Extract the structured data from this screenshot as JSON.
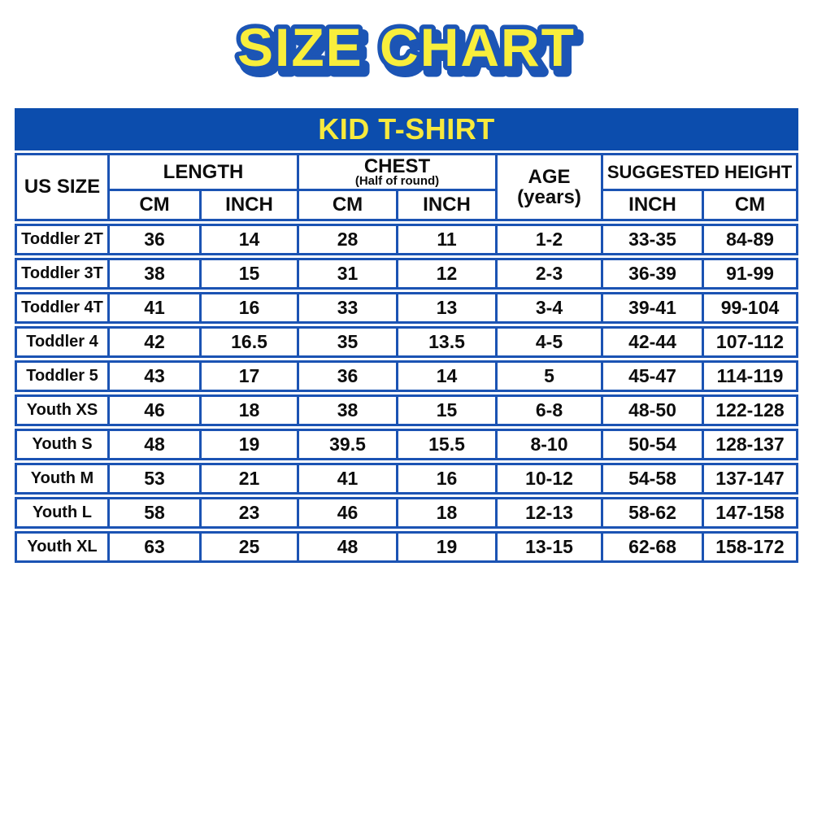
{
  "page": {
    "title": "SIZE CHART"
  },
  "colors": {
    "band_blue": "#0c4dad",
    "border_blue": "#1b53b3",
    "title_yellow": "#f8ee3c",
    "banner_yellow": "#f7e93d",
    "text_black": "#0d0d0d",
    "background": "#ffffff"
  },
  "table": {
    "banner": "KID T-SHIRT",
    "headers": {
      "us_size": "US SIZE",
      "length": "LENGTH",
      "chest": "CHEST",
      "chest_sub": "(Half of round)",
      "age": "AGE",
      "age_sub": "(years)",
      "suggested_height": "SUGGESTED HEIGHT",
      "length_cm": "CM",
      "length_inch": "INCH",
      "chest_cm": "CM",
      "chest_inch": "INCH",
      "height_inch": "INCH",
      "height_cm": "CM"
    }
  },
  "chart_data": {
    "type": "table",
    "title": "SIZE CHART",
    "subtitle": "KID T-SHIRT",
    "columns": [
      "US SIZE",
      "LENGTH CM",
      "LENGTH INCH",
      "CHEST (Half of round) CM",
      "CHEST (Half of round) INCH",
      "AGE (years)",
      "SUGGESTED HEIGHT INCH",
      "SUGGESTED HEIGHT CM"
    ],
    "rows": [
      [
        "Toddler 2T",
        "36",
        "14",
        "28",
        "11",
        "1-2",
        "33-35",
        "84-89"
      ],
      [
        "Toddler 3T",
        "38",
        "15",
        "31",
        "12",
        "2-3",
        "36-39",
        "91-99"
      ],
      [
        "Toddler 4T",
        "41",
        "16",
        "33",
        "13",
        "3-4",
        "39-41",
        "99-104"
      ],
      [
        "Toddler 4",
        "42",
        "16.5",
        "35",
        "13.5",
        "4-5",
        "42-44",
        "107-112"
      ],
      [
        "Toddler 5",
        "43",
        "17",
        "36",
        "14",
        "5",
        "45-47",
        "114-119"
      ],
      [
        "Youth XS",
        "46",
        "18",
        "38",
        "15",
        "6-8",
        "48-50",
        "122-128"
      ],
      [
        "Youth S",
        "48",
        "19",
        "39.5",
        "15.5",
        "8-10",
        "50-54",
        "128-137"
      ],
      [
        "Youth M",
        "53",
        "21",
        "41",
        "16",
        "10-12",
        "54-58",
        "137-147"
      ],
      [
        "Youth L",
        "58",
        "23",
        "46",
        "18",
        "12-13",
        "58-62",
        "147-158"
      ],
      [
        "Youth XL",
        "63",
        "25",
        "48",
        "19",
        "13-15",
        "62-68",
        "158-172"
      ]
    ]
  }
}
